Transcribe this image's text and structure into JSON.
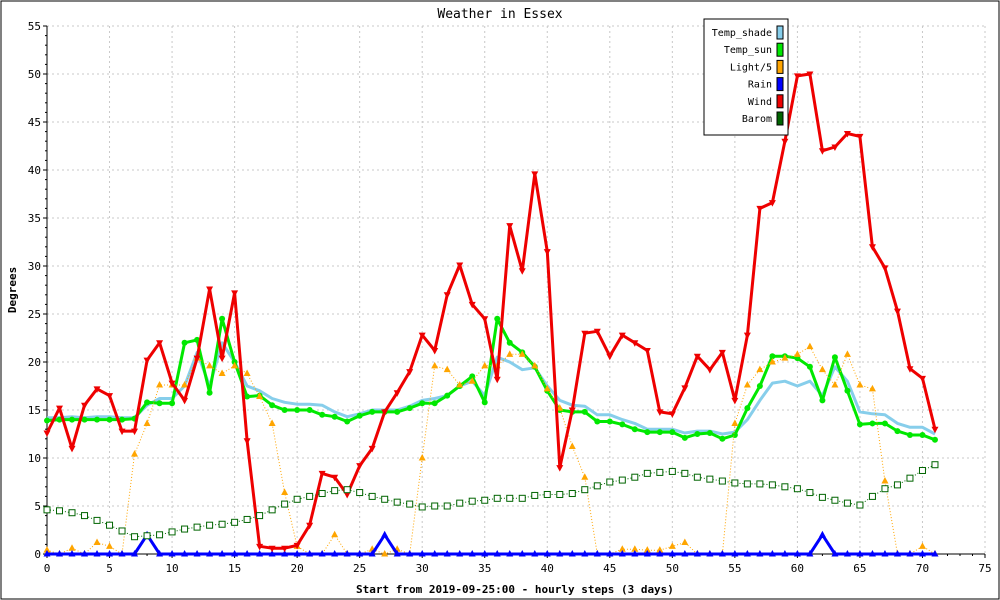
{
  "chart_data": {
    "type": "line",
    "title": "Weather in Essex",
    "xlabel": "Start from 2019-09-25:00 - hourly steps (3 days)",
    "ylabel": "Degrees",
    "xlim": [
      0,
      75
    ],
    "ylim": [
      0,
      55
    ],
    "xticks": [
      0,
      5,
      10,
      15,
      20,
      25,
      30,
      35,
      40,
      45,
      50,
      55,
      60,
      65,
      70,
      75
    ],
    "yticks": [
      0,
      5,
      10,
      15,
      20,
      25,
      30,
      35,
      40,
      45,
      50,
      55
    ],
    "grid": true,
    "legend_position": "top-right",
    "x": [
      0,
      1,
      2,
      3,
      4,
      5,
      6,
      7,
      8,
      9,
      10,
      11,
      12,
      13,
      14,
      15,
      16,
      17,
      18,
      19,
      20,
      21,
      22,
      23,
      24,
      25,
      26,
      27,
      28,
      29,
      30,
      31,
      32,
      33,
      34,
      35,
      36,
      37,
      38,
      39,
      40,
      41,
      42,
      43,
      44,
      45,
      46,
      47,
      48,
      49,
      50,
      51,
      52,
      53,
      54,
      55,
      56,
      57,
      58,
      59,
      60,
      61,
      62,
      63,
      64,
      65,
      66,
      67,
      68,
      69,
      70,
      71
    ],
    "series": [
      {
        "name": "Temp_shade",
        "color": "#87ceeb",
        "marker": "none",
        "dashed": false,
        "width": 3,
        "values": [
          14.2,
          14.2,
          14.3,
          14.2,
          14.3,
          14.3,
          14.2,
          14.2,
          15.5,
          16.2,
          16.2,
          17.5,
          21.0,
          17.5,
          22.0,
          20.0,
          17.5,
          17.0,
          16.2,
          15.8,
          15.6,
          15.6,
          15.5,
          14.8,
          14.3,
          14.6,
          15.0,
          15.0,
          15.0,
          15.4,
          16.0,
          16.2,
          16.5,
          17.5,
          18.0,
          16.5,
          20.5,
          20.0,
          19.2,
          19.4,
          17.5,
          16.0,
          15.5,
          15.4,
          14.5,
          14.5,
          14.0,
          13.6,
          13.0,
          13.0,
          13.0,
          12.6,
          12.8,
          12.8,
          12.5,
          12.7,
          14.0,
          16.0,
          17.8,
          18.0,
          17.5,
          18.0,
          16.5,
          19.5,
          18.0,
          14.8,
          14.6,
          14.5,
          13.6,
          13.2,
          13.2,
          12.5
        ]
      },
      {
        "name": "Temp_sun",
        "color": "#00e800",
        "marker": "dot",
        "dashed": false,
        "width": 3,
        "values": [
          13.9,
          14.0,
          14.0,
          14.0,
          14.0,
          14.0,
          14.0,
          14.1,
          15.8,
          15.7,
          15.7,
          22.0,
          22.3,
          16.8,
          24.5,
          20.0,
          16.4,
          16.5,
          15.5,
          15.0,
          15.0,
          15.0,
          14.5,
          14.3,
          13.8,
          14.4,
          14.8,
          14.8,
          14.8,
          15.2,
          15.7,
          15.7,
          16.5,
          17.5,
          18.5,
          15.8,
          24.5,
          22.0,
          21.0,
          19.5,
          17.0,
          15.0,
          14.8,
          14.8,
          13.8,
          13.8,
          13.5,
          13.0,
          12.7,
          12.7,
          12.7,
          12.1,
          12.5,
          12.6,
          12.0,
          12.4,
          15.2,
          17.5,
          20.6,
          20.6,
          20.4,
          19.5,
          16.0,
          20.5,
          17.0,
          13.5,
          13.6,
          13.6,
          12.8,
          12.4,
          12.4,
          11.9
        ]
      },
      {
        "name": "Light/5",
        "color": "#ffa500",
        "marker": "triangle",
        "dashed": true,
        "width": 1,
        "values": [
          0.4,
          0,
          0.6,
          0,
          1.2,
          0.8,
          0,
          10.4,
          13.6,
          17.6,
          17.6,
          17.6,
          20.4,
          19.6,
          18.8,
          19.6,
          18.8,
          16.4,
          13.6,
          6.4,
          0.8,
          0,
          0,
          2.0,
          0,
          0,
          0.5,
          0,
          0.5,
          0,
          10.0,
          19.6,
          19.2,
          17.6,
          18.0,
          19.6,
          19.6,
          20.8,
          20.8,
          19.6,
          17.2,
          15.2,
          11.2,
          8.0,
          0,
          0,
          0.5,
          0.5,
          0.4,
          0.4,
          0.8,
          1.2,
          0,
          0,
          0,
          13.6,
          17.6,
          19.2,
          20.0,
          20.4,
          20.8,
          21.6,
          19.2,
          17.6,
          20.8,
          17.6,
          17.2,
          7.6,
          0,
          0,
          0.8,
          0
        ]
      },
      {
        "name": "Rain",
        "color": "#0000ff",
        "marker": "triangle",
        "dashed": false,
        "width": 3,
        "values": [
          0,
          0,
          0,
          0,
          0,
          0,
          0,
          0,
          2.0,
          0,
          0,
          0,
          0,
          0,
          0,
          0,
          0,
          0,
          0,
          0,
          0,
          0,
          0,
          0,
          0,
          0,
          0,
          2.0,
          0,
          0,
          0,
          0,
          0,
          0,
          0,
          0,
          0,
          0,
          0,
          0,
          0,
          0,
          0,
          0,
          0,
          0,
          0,
          0,
          0,
          0,
          0,
          0,
          0,
          0,
          0,
          0,
          0,
          0,
          0,
          0,
          0,
          0,
          2.0,
          0,
          0,
          0,
          0,
          0,
          0,
          0,
          0,
          0
        ]
      },
      {
        "name": "Wind",
        "color": "#ee0000",
        "marker": "triangle-down",
        "dashed": false,
        "width": 3,
        "values": [
          12.6,
          15.2,
          11.0,
          15.5,
          17.2,
          16.5,
          12.8,
          12.8,
          20.2,
          22.0,
          17.8,
          16.0,
          20.4,
          27.6,
          20.4,
          27.2,
          11.8,
          0.8,
          0.6,
          0.6,
          0.9,
          3.0,
          8.4,
          8.0,
          6.2,
          9.2,
          11.0,
          14.8,
          16.8,
          19.0,
          22.8,
          21.2,
          27.0,
          30.1,
          26.0,
          24.5,
          18.2,
          34.2,
          29.5,
          39.6,
          31.5,
          9.0,
          15.0,
          23.0,
          23.2,
          20.6,
          22.8,
          22.0,
          21.2,
          14.8,
          14.6,
          17.3,
          20.6,
          19.2,
          21.0,
          16.0,
          22.8,
          36.0,
          36.6,
          43.0,
          49.8,
          50.0,
          42.0,
          42.4,
          43.8,
          43.5,
          32.0,
          29.8,
          25.3,
          19.3,
          18.3,
          13.0
        ]
      },
      {
        "name": "Barom",
        "color": "#006400",
        "marker": "square",
        "dashed": true,
        "width": 1,
        "values": [
          4.6,
          4.5,
          4.3,
          4.0,
          3.5,
          3.0,
          2.4,
          1.8,
          1.9,
          2.0,
          2.3,
          2.6,
          2.8,
          3.0,
          3.1,
          3.3,
          3.6,
          4.0,
          4.6,
          5.2,
          5.7,
          6.0,
          6.3,
          6.6,
          6.7,
          6.4,
          6.0,
          5.7,
          5.4,
          5.2,
          4.9,
          5.0,
          5.0,
          5.3,
          5.5,
          5.6,
          5.8,
          5.8,
          5.8,
          6.1,
          6.2,
          6.2,
          6.3,
          6.7,
          7.1,
          7.5,
          7.7,
          8.0,
          8.4,
          8.5,
          8.6,
          8.4,
          8.0,
          7.8,
          7.6,
          7.4,
          7.3,
          7.3,
          7.2,
          7.0,
          6.8,
          6.4,
          5.9,
          5.6,
          5.3,
          5.1,
          6.0,
          6.8,
          7.2,
          7.9,
          8.7,
          9.3
        ]
      }
    ]
  }
}
